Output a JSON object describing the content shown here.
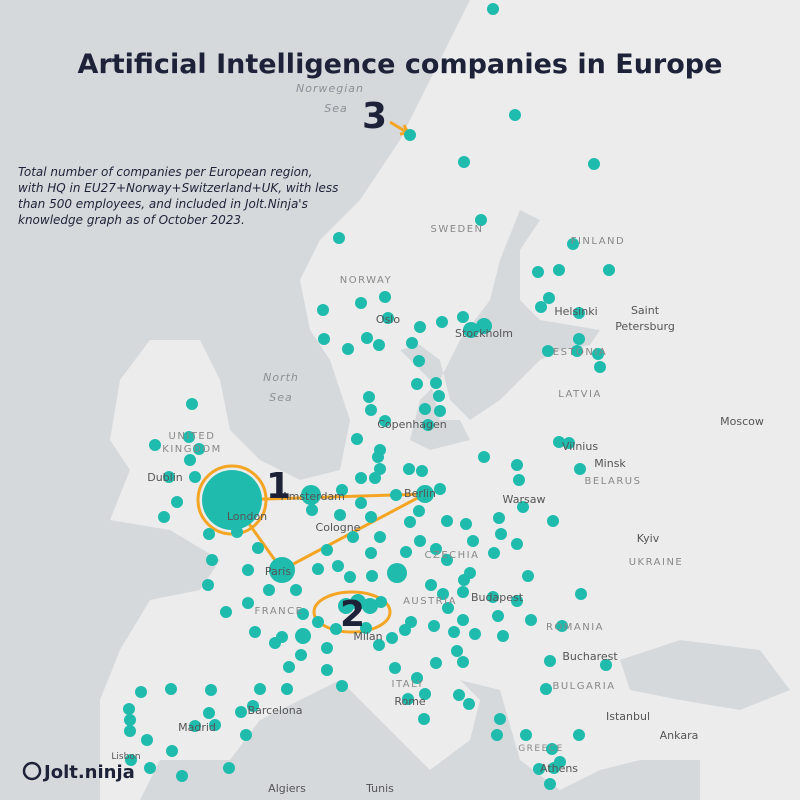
{
  "header": {
    "title": "Artificial Intelligence companies in Europe",
    "subtitle": [
      "Total number of companies per European region,",
      "with HQ in EU27+Norway+Switzerland+UK, with less",
      "than 500 employees, and included in Jolt.Ninja's",
      "knowledge graph as of October 2023."
    ]
  },
  "map": {
    "labels": [
      "Norwegian",
      "Sea",
      "SWEDEN",
      "FINLAND",
      "NORWAY",
      "Oslo",
      "Stockholm",
      "Helsinki",
      "Saint",
      "Petersburg",
      "ESTONIA",
      "LATVIA",
      "North",
      "Sea",
      "UNITED",
      "KINGDOM",
      "Dublin",
      "Copenhagen",
      "Vilnius",
      "Minsk",
      "BELARUS",
      "Moscow",
      "Amsterdam",
      "Berlin",
      "Warsaw",
      "London",
      "Cologne",
      "Paris",
      "CZECHIA",
      "Kyiv",
      "UKRAINE",
      "FRANCE",
      "AUSTRIA",
      "Budapest",
      "Milan",
      "ROMANIA",
      "Bucharest",
      "ITALY",
      "BULGARIA",
      "Barcelona",
      "Madrid",
      "Rome",
      "Istanbul",
      "Ankara",
      "Lisbon",
      "GREECE",
      "Athens",
      "Algiers",
      "Tunis"
    ],
    "annotations": [
      "1",
      "2",
      "3"
    ]
  },
  "footer": {
    "logo": "Jolt.ninja"
  }
}
